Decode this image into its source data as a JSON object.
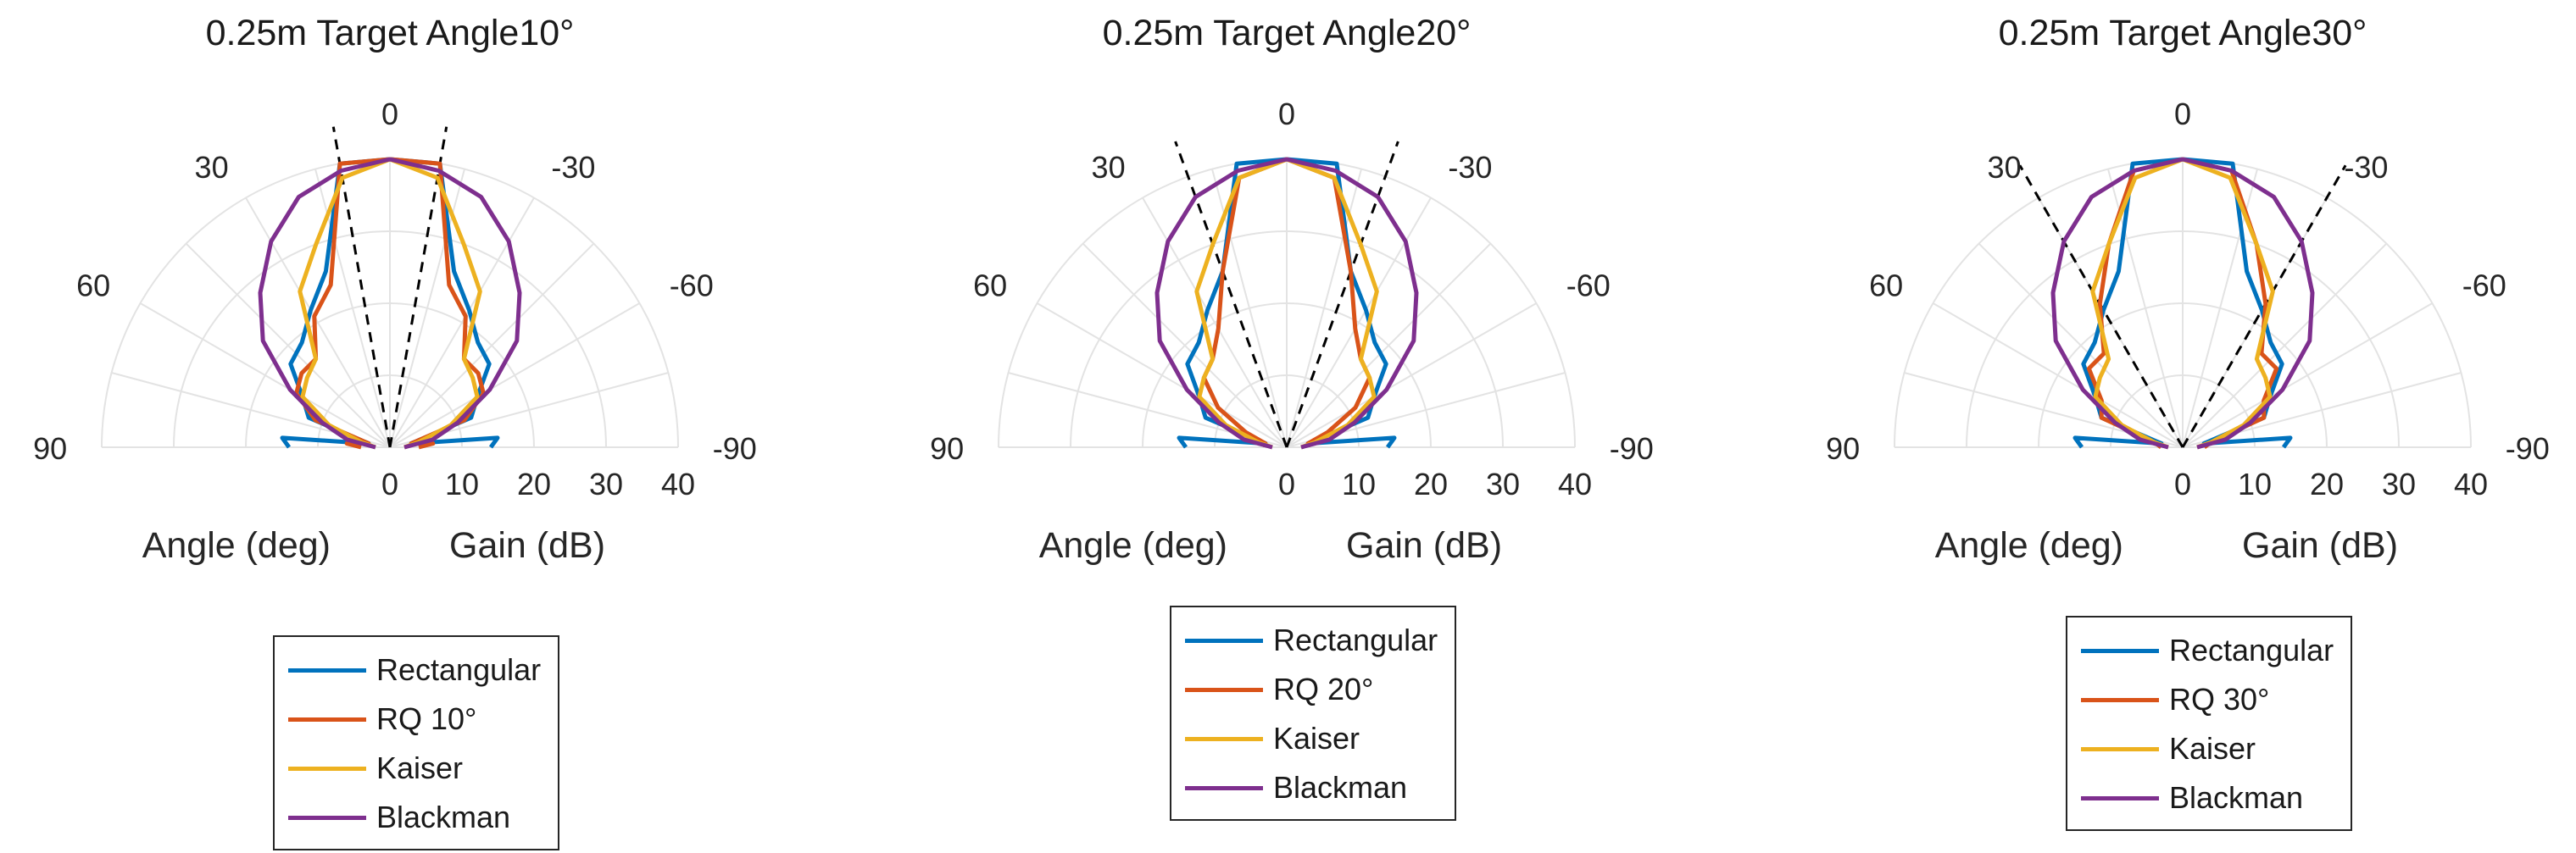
{
  "colors": {
    "Rectangular": "#0072BD",
    "RQ": "#D95319",
    "Kaiser": "#EDB120",
    "Blackman": "#7E2F8E",
    "grid": "#e3e3e3",
    "target": "#000000"
  },
  "chart_data": [
    {
      "type": "polar-line",
      "title": "0.25m Target Angle10°",
      "theta_label": "Angle (deg)",
      "r_label": "Gain (dB)",
      "theta_ticks": [
        "0",
        "30",
        "-30",
        "60",
        "-60",
        "90",
        "-90"
      ],
      "r_ticks": [
        "0",
        "10",
        "20",
        "30",
        "40"
      ],
      "rlim": [
        0,
        40
      ],
      "theta_range": [
        -90,
        90
      ],
      "target_lines_deg": [
        10,
        -10
      ],
      "legend": [
        "Rectangular",
        "RQ 10°",
        "Kaiser",
        "Blackman"
      ],
      "series": [
        {
          "name": "Rectangular",
          "theta": [
            90,
            85,
            80,
            70,
            60,
            50,
            40,
            30,
            20,
            10,
            0,
            -10,
            -20,
            -30,
            -40,
            -50,
            -60,
            -70,
            -80,
            -85,
            -90
          ],
          "r": [
            14,
            15,
            3,
            12,
            14,
            18,
            19,
            22,
            26,
            40,
            40,
            40,
            26,
            22,
            19,
            18,
            14,
            12,
            3,
            15,
            14
          ]
        },
        {
          "name": "RQ 10°",
          "theta": [
            90,
            85,
            80,
            70,
            60,
            50,
            40,
            30,
            20,
            10,
            0,
            -10,
            -20,
            -30,
            -40,
            -50,
            -60,
            -70,
            -80,
            -85,
            -90
          ],
          "r": [
            4,
            6,
            3,
            11,
            15,
            16,
            16,
            21,
            24,
            40,
            40,
            40,
            24,
            21,
            16,
            16,
            15,
            11,
            3,
            6,
            4
          ]
        },
        {
          "name": "Kaiser",
          "theta": [
            90,
            80,
            70,
            60,
            50,
            40,
            30,
            20,
            10,
            0,
            -10,
            -20,
            -30,
            -40,
            -50,
            -60,
            -70,
            -80,
            -90
          ],
          "r": [
            2,
            4,
            9,
            14,
            15,
            16,
            25,
            30,
            38,
            40,
            38,
            30,
            25,
            16,
            15,
            14,
            9,
            4,
            2
          ]
        },
        {
          "name": "Blackman",
          "theta": [
            90,
            80,
            70,
            60,
            50,
            40,
            30,
            20,
            10,
            0,
            -10,
            -20,
            -30,
            -40,
            -50,
            -60,
            -70,
            -80,
            -90
          ],
          "r": [
            2,
            6,
            10,
            16,
            23,
            28,
            33,
            37,
            39,
            40,
            39,
            37,
            33,
            28,
            23,
            16,
            10,
            6,
            2
          ]
        }
      ]
    },
    {
      "type": "polar-line",
      "title": "0.25m Target Angle20°",
      "theta_label": "Angle (deg)",
      "r_label": "Gain (dB)",
      "theta_ticks": [
        "0",
        "30",
        "-30",
        "60",
        "-60",
        "90",
        "-90"
      ],
      "r_ticks": [
        "0",
        "10",
        "20",
        "30",
        "40"
      ],
      "rlim": [
        0,
        40
      ],
      "theta_range": [
        -90,
        90
      ],
      "target_lines_deg": [
        20,
        -20
      ],
      "legend": [
        "Rectangular",
        "RQ 20°",
        "Kaiser",
        "Blackman"
      ],
      "series": [
        {
          "name": "Rectangular",
          "theta": [
            90,
            85,
            80,
            70,
            60,
            50,
            40,
            30,
            20,
            10,
            0,
            -10,
            -20,
            -30,
            -40,
            -50,
            -60,
            -70,
            -80,
            -85,
            -90
          ],
          "r": [
            14,
            15,
            3,
            12,
            14,
            18,
            19,
            22,
            26,
            40,
            40,
            40,
            26,
            22,
            19,
            18,
            14,
            12,
            3,
            15,
            14
          ]
        },
        {
          "name": "RQ 20°",
          "theta": [
            90,
            80,
            70,
            60,
            50,
            40,
            30,
            20,
            10,
            0,
            -10,
            -20,
            -30,
            -40,
            -50,
            -60,
            -70,
            -80,
            -90
          ],
          "r": [
            3,
            3,
            6,
            11,
            15,
            16,
            19,
            26,
            38,
            40,
            38,
            26,
            19,
            16,
            15,
            11,
            6,
            3,
            3
          ]
        },
        {
          "name": "Kaiser",
          "theta": [
            90,
            80,
            70,
            60,
            50,
            40,
            30,
            20,
            10,
            0,
            -10,
            -20,
            -30,
            -40,
            -50,
            -60,
            -70,
            -80,
            -90
          ],
          "r": [
            2,
            4,
            9,
            14,
            15,
            16,
            25,
            30,
            38,
            40,
            38,
            30,
            25,
            16,
            15,
            14,
            9,
            4,
            2
          ]
        },
        {
          "name": "Blackman",
          "theta": [
            90,
            80,
            70,
            60,
            50,
            40,
            30,
            20,
            10,
            0,
            -10,
            -20,
            -30,
            -40,
            -50,
            -60,
            -70,
            -80,
            -90
          ],
          "r": [
            2,
            6,
            10,
            16,
            23,
            28,
            33,
            37,
            39,
            40,
            39,
            37,
            33,
            28,
            23,
            16,
            10,
            6,
            2
          ]
        }
      ]
    },
    {
      "type": "polar-line",
      "title": "0.25m Target Angle30°",
      "theta_label": "Angle (deg)",
      "r_label": "Gain (dB)",
      "theta_ticks": [
        "0",
        "30",
        "-30",
        "60",
        "-60",
        "90",
        "-90"
      ],
      "r_ticks": [
        "0",
        "10",
        "20",
        "30",
        "40"
      ],
      "rlim": [
        0,
        40
      ],
      "theta_range": [
        -90,
        90
      ],
      "target_lines_deg": [
        30,
        -30
      ],
      "legend": [
        "Rectangular",
        "RQ 30°",
        "Kaiser",
        "Blackman"
      ],
      "series": [
        {
          "name": "Rectangular",
          "theta": [
            90,
            85,
            80,
            70,
            60,
            50,
            40,
            30,
            20,
            10,
            0,
            -10,
            -20,
            -30,
            -40,
            -50,
            -60,
            -70,
            -80,
            -85,
            -90
          ],
          "r": [
            14,
            15,
            3,
            12,
            14,
            18,
            19,
            22,
            26,
            40,
            40,
            40,
            26,
            22,
            19,
            18,
            14,
            12,
            3,
            15,
            14
          ]
        },
        {
          "name": "RQ 30°",
          "theta": [
            90,
            80,
            70,
            60,
            50,
            40,
            30,
            20,
            10,
            0,
            -10,
            -20,
            -30,
            -40,
            -50,
            -60,
            -70,
            -80,
            -90
          ],
          "r": [
            3,
            4,
            12,
            13,
            17,
            17,
            23,
            30,
            39,
            40,
            39,
            30,
            23,
            17,
            17,
            13,
            12,
            4,
            3
          ]
        },
        {
          "name": "Kaiser",
          "theta": [
            90,
            80,
            70,
            60,
            50,
            40,
            30,
            20,
            10,
            0,
            -10,
            -20,
            -30,
            -40,
            -50,
            -60,
            -70,
            -80,
            -90
          ],
          "r": [
            2,
            4,
            9,
            14,
            15,
            16,
            25,
            30,
            38,
            40,
            38,
            30,
            25,
            16,
            15,
            14,
            9,
            4,
            2
          ]
        },
        {
          "name": "Blackman",
          "theta": [
            90,
            80,
            70,
            60,
            50,
            40,
            30,
            20,
            10,
            0,
            -10,
            -20,
            -30,
            -40,
            -50,
            -60,
            -70,
            -80,
            -90
          ],
          "r": [
            2,
            6,
            10,
            16,
            23,
            28,
            33,
            37,
            39,
            40,
            39,
            37,
            33,
            28,
            23,
            16,
            10,
            6,
            2
          ]
        }
      ]
    }
  ]
}
